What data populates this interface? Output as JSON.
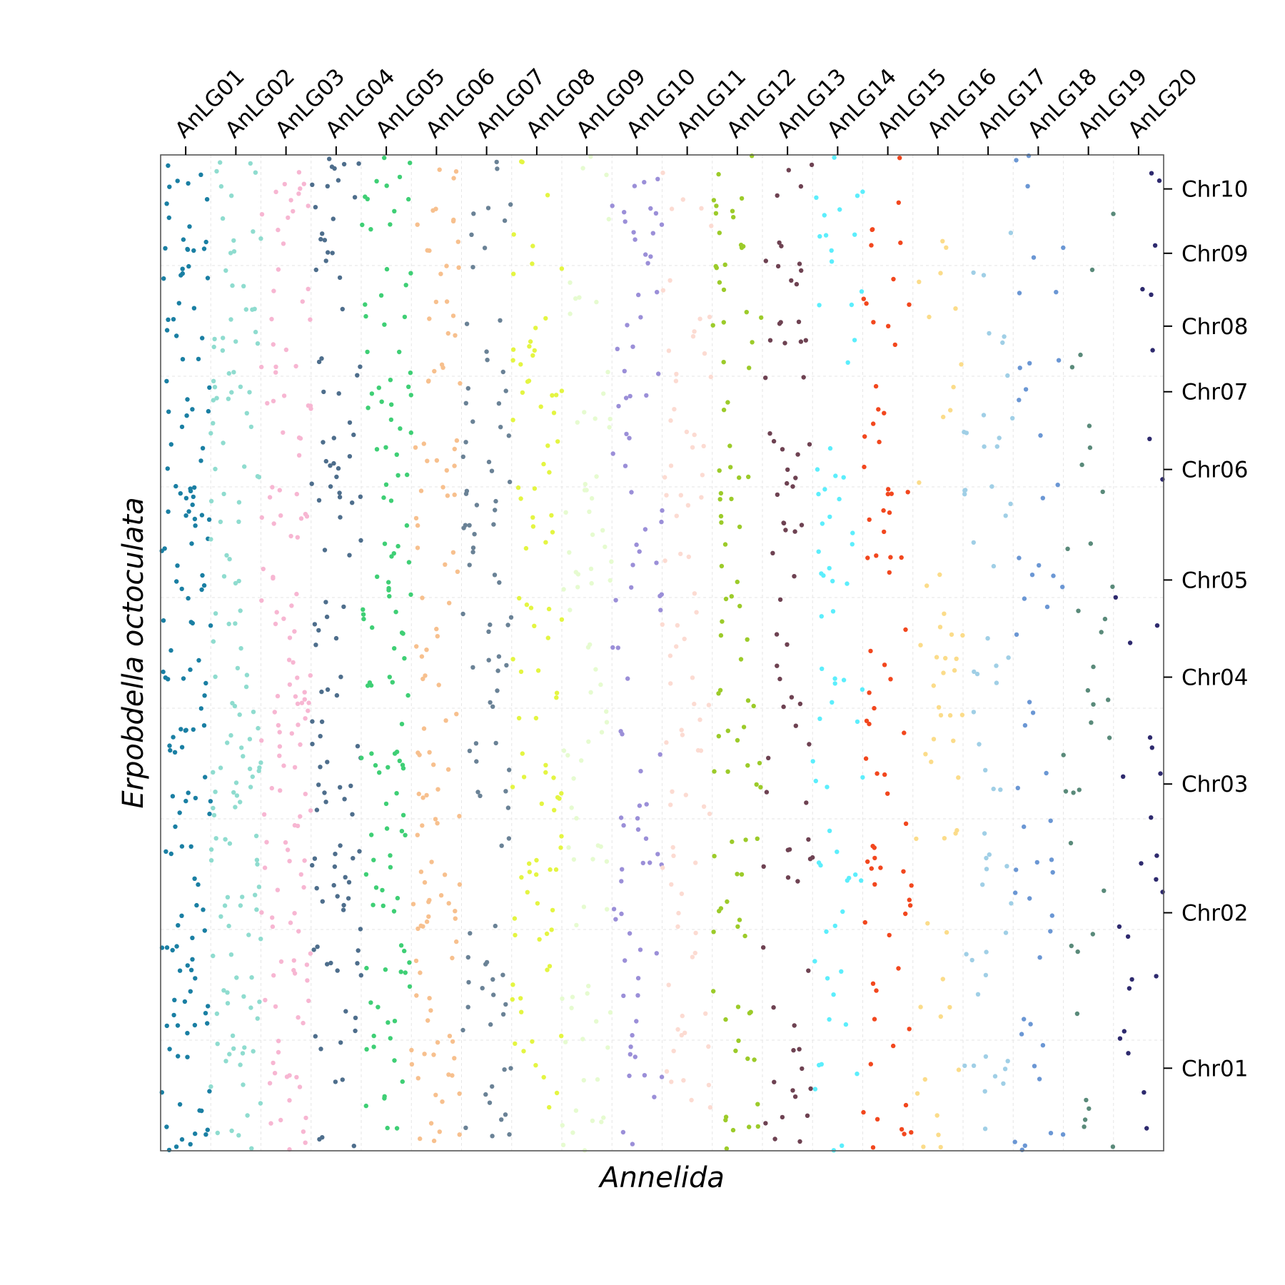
{
  "chart_data": {
    "type": "scatter",
    "title": "",
    "xlabel": "Annelida",
    "ylabel": "Erpobdella octoculata",
    "x_tick_position": "top",
    "y_tick_position": "right",
    "grid": true,
    "legend": "none",
    "x_categories": [
      "AnLG01",
      "AnLG02",
      "AnLG03",
      "AnLG04",
      "AnLG05",
      "AnLG06",
      "AnLG07",
      "AnLG08",
      "AnLG09",
      "AnLG10",
      "AnLG11",
      "AnLG12",
      "AnLG13",
      "AnLG14",
      "AnLG15",
      "AnLG16",
      "AnLG17",
      "AnLG18",
      "AnLG19",
      "AnLG20"
    ],
    "x_tick_values": [
      1,
      2,
      3,
      4,
      5,
      6,
      7,
      8,
      9,
      10,
      11,
      12,
      13,
      14,
      15,
      16,
      17,
      18,
      19,
      20
    ],
    "xlim": [
      0.5,
      20.5
    ],
    "y_categories": [
      "Chr01",
      "Chr02",
      "Chr03",
      "Chr04",
      "Chr05",
      "Chr06",
      "Chr07",
      "Chr08",
      "Chr09",
      "Chr10"
    ],
    "y_tick_values": [
      0.68,
      1.96,
      3.02,
      3.9,
      4.7,
      5.61,
      6.25,
      6.79,
      7.39,
      7.92
    ],
    "ylim": [
      0,
      8.2
    ],
    "series": [
      {
        "group": "AnLG01",
        "color": "#1a7fa3",
        "count": 150
      },
      {
        "group": "AnLG02",
        "color": "#8fdccf",
        "count": 140
      },
      {
        "group": "AnLG03",
        "color": "#f7b6d2",
        "count": 135
      },
      {
        "group": "AnLG04",
        "color": "#4e6e8c",
        "count": 110
      },
      {
        "group": "AnLG05",
        "color": "#3fcf75",
        "count": 120
      },
      {
        "group": "AnLG06",
        "color": "#f7c08e",
        "count": 115
      },
      {
        "group": "AnLG07",
        "color": "#6a8296",
        "count": 90
      },
      {
        "group": "AnLG08",
        "color": "#e4f542",
        "count": 95
      },
      {
        "group": "AnLG09",
        "color": "#e6fbd0",
        "count": 80
      },
      {
        "group": "AnLG10",
        "color": "#9b8fd8",
        "count": 85
      },
      {
        "group": "AnLG11",
        "color": "#fcdbd2",
        "count": 80
      },
      {
        "group": "AnLG12",
        "color": "#9ccb2a",
        "count": 90
      },
      {
        "group": "AnLG13",
        "color": "#6e4252",
        "count": 75
      },
      {
        "group": "AnLG14",
        "color": "#5ceefc",
        "count": 70
      },
      {
        "group": "AnLG15",
        "color": "#f2471e",
        "count": 75
      },
      {
        "group": "AnLG16",
        "color": "#fbdc8a",
        "count": 50
      },
      {
        "group": "AnLG17",
        "color": "#a0cfe6",
        "count": 55
      },
      {
        "group": "AnLG18",
        "color": "#6b97d4",
        "count": 50
      },
      {
        "group": "AnLG19",
        "color": "#5a8a7a",
        "count": 35
      },
      {
        "group": "AnLG20",
        "color": "#2e2a6e",
        "count": 30
      }
    ]
  }
}
